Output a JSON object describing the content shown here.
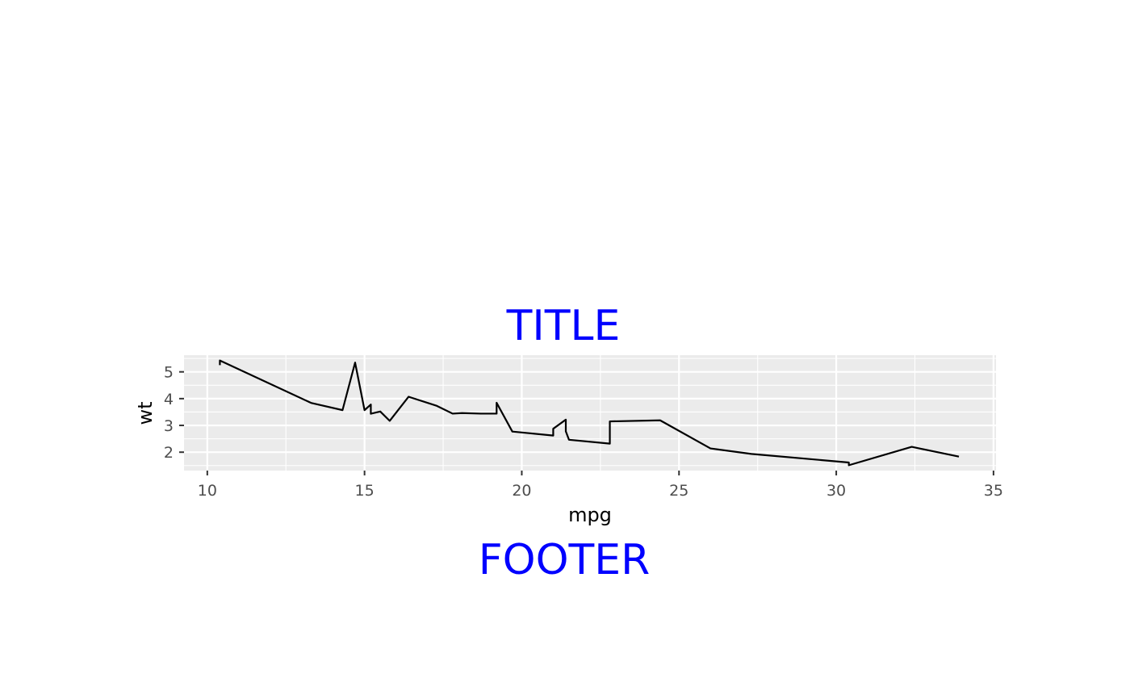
{
  "page": {
    "title": "TITLE",
    "footer": "FOOTER",
    "title_color": "#0000ff"
  },
  "chart_data": {
    "type": "line",
    "xlabel": "mpg",
    "ylabel": "wt",
    "xlim": [
      9.26,
      35.08
    ],
    "ylim": [
      1.313,
      5.624
    ],
    "xticks": [
      10,
      15,
      20,
      25,
      30,
      35
    ],
    "yticks": [
      2,
      3,
      4,
      5
    ],
    "grid": true,
    "panel_color": "#ebebeb",
    "line_color": "#000000",
    "x": [
      10.4,
      10.4,
      13.3,
      14.3,
      14.7,
      15.0,
      15.2,
      15.2,
      15.5,
      15.8,
      16.4,
      17.3,
      17.8,
      18.1,
      18.7,
      19.2,
      19.2,
      19.7,
      21.0,
      21.0,
      21.4,
      21.4,
      21.5,
      22.8,
      22.8,
      24.4,
      26.0,
      27.3,
      30.4,
      30.4,
      32.4,
      33.9
    ],
    "y": [
      5.25,
      5.424,
      3.84,
      3.57,
      5.345,
      3.57,
      3.78,
      3.435,
      3.52,
      3.17,
      4.07,
      3.73,
      3.44,
      3.46,
      3.44,
      3.44,
      3.845,
      2.77,
      2.62,
      2.875,
      3.215,
      2.78,
      2.465,
      2.32,
      3.15,
      3.19,
      2.14,
      1.935,
      1.615,
      1.513,
      2.2,
      1.835
    ]
  }
}
